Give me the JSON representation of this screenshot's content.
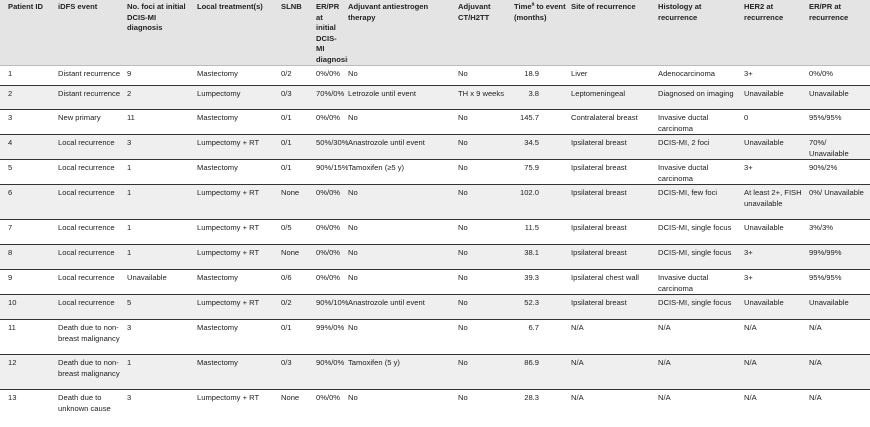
{
  "headers": [
    "Patient ID",
    "iDFS event",
    "No. foci at initial DCIS-MI diagnosis",
    "Local treatment(s)",
    "SLNB",
    "ER/PR at initial DCIS-MI diagnosis",
    "Adjuvant antiestrogen therapy",
    "Adjuvant CT/H2TT",
    "Time",
    "Site of recurrence",
    "Histology at recurrence",
    "HER2 at recurrence",
    "ER/PR at recurrence"
  ],
  "time_header": {
    "pre": "Time",
    "sup": "a",
    "post": " to event (months)"
  },
  "rows": [
    [
      "1",
      "Distant recurrence",
      "9",
      "Mastectomy",
      "0/2",
      "0%/0%",
      "No",
      "No",
      "18.9",
      "Liver",
      "Adenocarcinoma",
      "3+",
      "0%/0%"
    ],
    [
      "2",
      "Distant recurrence",
      "2",
      "Lumpectomy",
      "0/3",
      "70%/0%",
      "Letrozole until event",
      "TH x 9 weeks",
      "3.8",
      "Leptomeningeal",
      "Diagnosed on imaging",
      "Unavailable",
      "Unavailable"
    ],
    [
      "3",
      "New primary",
      "11",
      "Mastectomy",
      "0/1",
      "0%/0%",
      "No",
      "No",
      "145.7",
      "Contralateral breast",
      "Invasive ductal carcinoma",
      "0",
      "95%/95%"
    ],
    [
      "4",
      "Local recurrence",
      "3",
      "Lumpectomy + RT",
      "0/1",
      "50%/30%",
      "Anastrozole until event",
      "No",
      "34.5",
      "Ipsilateral breast",
      "DCIS-MI, 2 foci",
      "Unavailable",
      "70%/ Unavailable"
    ],
    [
      "5",
      "Local recurrence",
      "1",
      "Mastectomy",
      "0/1",
      "90%/15%",
      "Tamoxifen (≥5 y)",
      "No",
      "75.9",
      "Ipsilateral breast",
      "Invasive ductal carcinoma",
      "3+",
      "90%/2%"
    ],
    [
      "6",
      "Local recurrence",
      "1",
      "Lumpectomy + RT",
      "None",
      "0%/0%",
      "No",
      "No",
      "102.0",
      "Ipsilateral breast",
      "DCIS-MI, few foci",
      "At least 2+, FISH unavailable",
      "0%/ Unavailable"
    ],
    [
      "7",
      "Local recurrence",
      "1",
      "Lumpectomy + RT",
      "0/5",
      "0%/0%",
      "No",
      "No",
      "11.5",
      "Ipsilateral breast",
      "DCIS-MI, single focus",
      "Unavailable",
      "3%/3%"
    ],
    [
      "8",
      "Local recurrence",
      "1",
      "Lumpectomy + RT",
      "None",
      "0%/0%",
      "No",
      "No",
      "38.1",
      "Ipsilateral breast",
      "DCIS-MI, single focus",
      "3+",
      "99%/99%"
    ],
    [
      "9",
      "Local recurrence",
      "Unavailable",
      "Mastectomy",
      "0/6",
      "0%/0%",
      "No",
      "No",
      "39.3",
      "Ipsilateral chest wall",
      "Invasive ductal carcinoma",
      "3+",
      "95%/95%"
    ],
    [
      "10",
      "Local recurrence",
      "5",
      "Lumpectomy + RT",
      "0/2",
      "90%/10%",
      "Anastrozole until event",
      "No",
      "52.3",
      "Ipsilateral breast",
      "DCIS-MI, single focus",
      "Unavailable",
      "Unavailable"
    ],
    [
      "11",
      "Death due to non-breast malignancy",
      "3",
      "Mastectomy",
      "0/1",
      "99%/0%",
      "No",
      "No",
      "6.7",
      "N/A",
      "N/A",
      "N/A",
      "N/A"
    ],
    [
      "12",
      "Death due to non-breast malignancy",
      "1",
      "Mastectomy",
      "0/3",
      "90%/0%",
      "Tamoxifen (5 y)",
      "No",
      "86.9",
      "N/A",
      "N/A",
      "N/A",
      "N/A"
    ],
    [
      "13",
      "Death due to unknown cause",
      "3",
      "Lumpectomy + RT",
      "None",
      "0%/0%",
      "No",
      "No",
      "28.3",
      "N/A",
      "N/A",
      "N/A",
      "N/A"
    ]
  ]
}
